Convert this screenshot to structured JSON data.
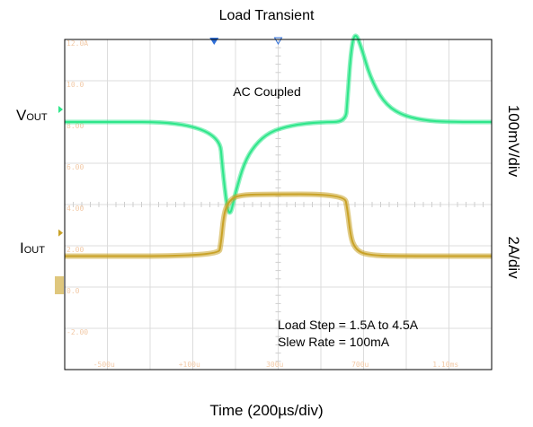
{
  "chart_data": {
    "type": "line",
    "title": "Load Transient",
    "xlabel": "Time (200µs/div)",
    "channel_labels": [
      {
        "main": "V",
        "sub": "OUT"
      },
      {
        "main": "I",
        "sub": "OUT"
      }
    ],
    "scales": [
      "100mV/div",
      "2A/div"
    ],
    "annotations": [
      "AC Coupled",
      "Load Step = 1.5A to 4.5A",
      "Slew Rate = 100mA"
    ],
    "y_ticks": [
      "12.0A",
      "10.0",
      "8.00",
      "6.00",
      "4.00",
      "2.00",
      "0.0",
      "-2.00"
    ],
    "x_ticks": [
      "-500u",
      "+100u",
      "300u",
      "700u",
      "1.10ms"
    ],
    "grid": true,
    "series": [
      {
        "color": "#2ee68a",
        "x_div": [
          0,
          3.6,
          3.72,
          3.85,
          4.0,
          4.2,
          4.45,
          4.8,
          5.3,
          6.0,
          6.58,
          6.62,
          6.7,
          6.8,
          6.95,
          7.15,
          7.45,
          7.85,
          8.4,
          9.0,
          10.0
        ],
        "y_mv": [
          0,
          0,
          -70,
          -120,
          -85,
          -50,
          -28,
          -12,
          -4,
          0,
          0,
          25,
          85,
          110,
          90,
          55,
          25,
          9,
          2,
          0,
          0
        ]
      },
      {
        "color": "#c9a227",
        "x_div": [
          0,
          3.6,
          3.66,
          3.72,
          3.8,
          3.95,
          4.15,
          4.5,
          6.55,
          6.62,
          6.7,
          6.8,
          6.95,
          7.2,
          7.6,
          10.0
        ],
        "y_a": [
          1.5,
          1.5,
          2.1,
          3.4,
          4.0,
          4.35,
          4.45,
          4.5,
          4.5,
          3.8,
          2.4,
          1.9,
          1.65,
          1.55,
          1.5,
          1.5
        ]
      }
    ]
  },
  "colors": {
    "green": "#2ee68a",
    "gold": "#c9a227",
    "grid": "#dcdcdc",
    "tick_text": "#f2c9a6",
    "marker": "#2f6fd8"
  }
}
